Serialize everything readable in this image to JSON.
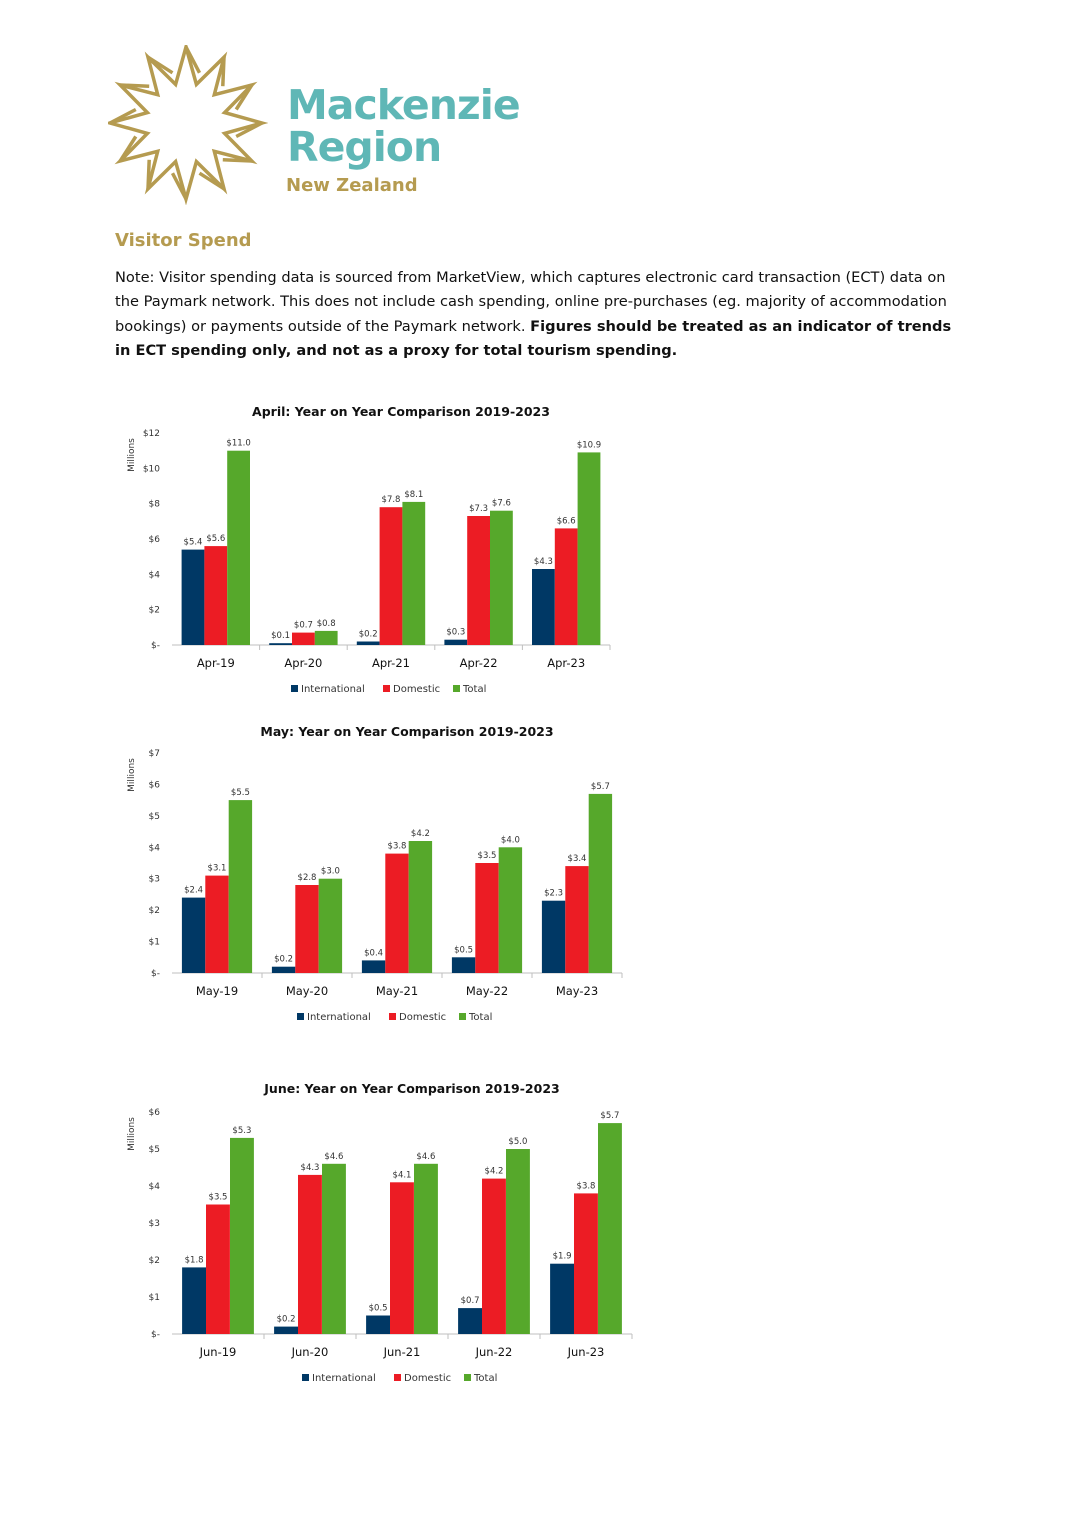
{
  "brand": {
    "line1": "Mackenzie",
    "line2": "Region",
    "line3": "New Zealand",
    "logo_icon": "star-burst-logo-icon",
    "colors": {
      "teal": "#5fb7b6",
      "gold": "#b59b50"
    }
  },
  "section": {
    "title": "Visitor Spend"
  },
  "note": {
    "text": "Note: Visitor spending data is sourced from MarketView, which captures electronic card transaction (ECT) data on the Paymark network. This does not include cash spending, online pre-purchases (eg. majority of accommodation bookings) or payments outside of the Paymark network. ",
    "bold": "Figures should be treated as an indicator of trends in ECT spending only, and not as a proxy for total tourism spending."
  },
  "colors": {
    "International": "#003865",
    "Domestic": "#ec1c24",
    "Total": "#56a82b"
  },
  "chart_data": [
    {
      "type": "bar",
      "title": "April: Year on Year Comparison 2019-2023",
      "ylabel": "Millions",
      "categories": [
        "Apr-19",
        "Apr-20",
        "Apr-21",
        "Apr-22",
        "Apr-23"
      ],
      "yticks": [
        "$-",
        "$2",
        "$4",
        "$6",
        "$8",
        "$10",
        "$12"
      ],
      "ylim": [
        0,
        12
      ],
      "series": [
        {
          "name": "International",
          "values": [
            5.4,
            0.1,
            0.2,
            0.3,
            4.3
          ],
          "labels": [
            "$5.4",
            "$0.1",
            "$0.2",
            "$0.3",
            "$4.3"
          ]
        },
        {
          "name": "Domestic",
          "values": [
            5.6,
            0.7,
            7.8,
            7.3,
            6.6
          ],
          "labels": [
            "$5.6",
            "$0.7",
            "$7.8",
            "$7.3",
            "$6.6"
          ]
        },
        {
          "name": "Total",
          "values": [
            11.0,
            0.8,
            8.1,
            7.6,
            10.9
          ],
          "labels": [
            "$11.0",
            "$0.8",
            "$8.1",
            "$7.6",
            "$10.9"
          ]
        }
      ],
      "legend": "bottom"
    },
    {
      "type": "bar",
      "title": "May: Year on Year Comparison 2019-2023",
      "ylabel": "Millions",
      "categories": [
        "May-19",
        "May-20",
        "May-21",
        "May-22",
        "May-23"
      ],
      "yticks": [
        "$-",
        "$1",
        "$2",
        "$3",
        "$4",
        "$5",
        "$6",
        "$7"
      ],
      "ylim": [
        0,
        7
      ],
      "series": [
        {
          "name": "International",
          "values": [
            2.4,
            0.2,
            0.4,
            0.5,
            2.3
          ],
          "labels": [
            "$2.4",
            "$0.2",
            "$0.4",
            "$0.5",
            "$2.3"
          ]
        },
        {
          "name": "Domestic",
          "values": [
            3.1,
            2.8,
            3.8,
            3.5,
            3.4
          ],
          "labels": [
            "$3.1",
            "$2.8",
            "$3.8",
            "$3.5",
            "$3.4"
          ]
        },
        {
          "name": "Total",
          "values": [
            5.5,
            3.0,
            4.2,
            4.0,
            5.7
          ],
          "labels": [
            "$5.5",
            "$3.0",
            "$4.2",
            "$4.0",
            "$5.7"
          ]
        }
      ],
      "legend": "bottom"
    },
    {
      "type": "bar",
      "title": "June: Year on Year Comparison 2019-2023",
      "ylabel": "Millions",
      "categories": [
        "Jun-19",
        "Jun-20",
        "Jun-21",
        "Jun-22",
        "Jun-23"
      ],
      "yticks": [
        "$-",
        "$1",
        "$2",
        "$3",
        "$4",
        "$5",
        "$6"
      ],
      "ylim": [
        0,
        6
      ],
      "series": [
        {
          "name": "International",
          "values": [
            1.8,
            0.2,
            0.5,
            0.7,
            1.9
          ],
          "labels": [
            "$1.8",
            "$0.2",
            "$0.5",
            "$0.7",
            "$1.9"
          ]
        },
        {
          "name": "Domestic",
          "values": [
            3.5,
            4.3,
            4.1,
            4.2,
            3.8
          ],
          "labels": [
            "$3.5",
            "$4.3",
            "$4.1",
            "$4.2",
            "$3.8"
          ]
        },
        {
          "name": "Total",
          "values": [
            5.3,
            4.6,
            4.6,
            5.0,
            5.7
          ],
          "labels": [
            "$5.3",
            "$4.6",
            "$4.6",
            "$5.0",
            "$5.7"
          ]
        }
      ],
      "legend": "bottom"
    }
  ]
}
